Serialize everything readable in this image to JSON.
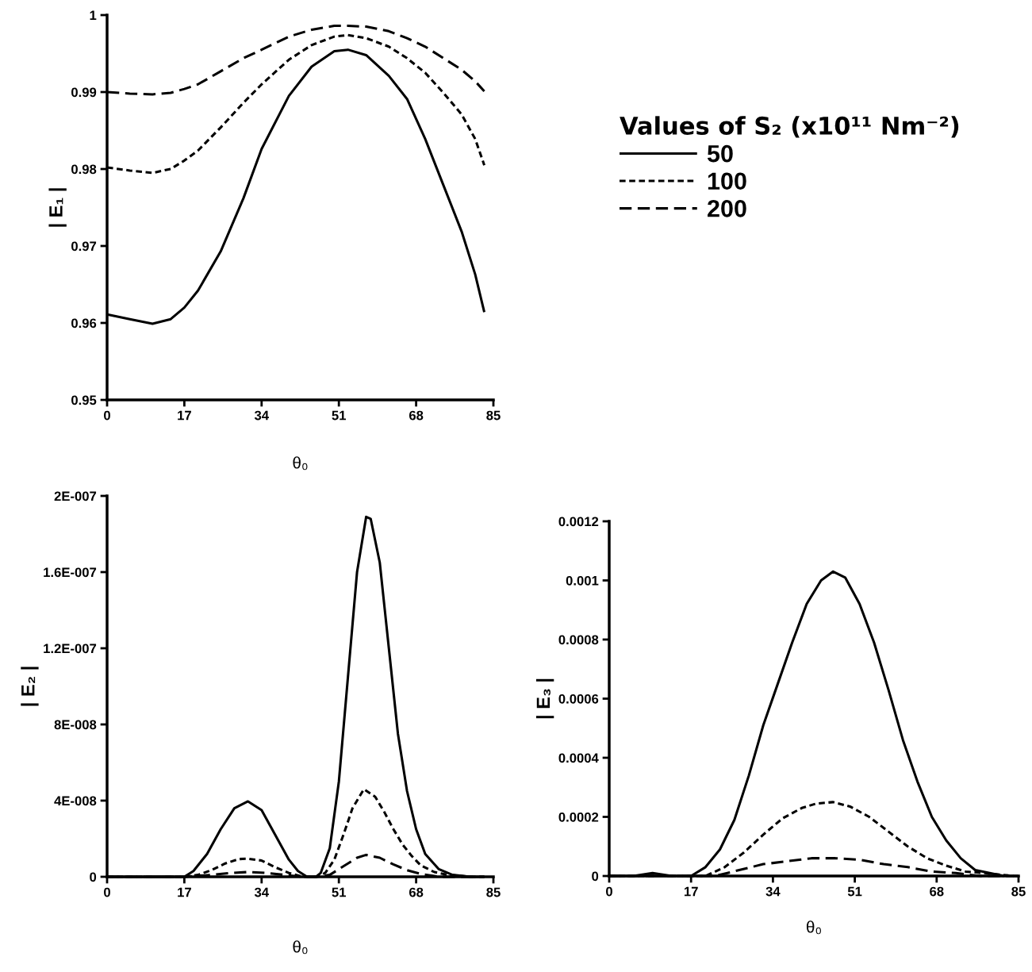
{
  "chart_data": [
    {
      "type": "line",
      "ylabel": "| E₁ |",
      "xlabel": "θ₀",
      "legend_title": "Values of S₂ (x10¹¹ Nm⁻²)",
      "legend": "right",
      "x": [
        0,
        5,
        10,
        14,
        17,
        20,
        25,
        30,
        34,
        40,
        45,
        50,
        53,
        57,
        62,
        66,
        70,
        74,
        78,
        81,
        83
      ],
      "xlim": [
        0,
        85
      ],
      "xticks": [
        0,
        17,
        34,
        51,
        68,
        85
      ],
      "ylim": [
        0.95,
        1
      ],
      "yticks": [
        0.95,
        0.96,
        0.97,
        0.98,
        0.99,
        1
      ],
      "grid": false,
      "marker": "none",
      "series": [
        {
          "name": "50",
          "color": "#000000",
          "line_style": "solid",
          "values": [
            0.9611,
            0.9605,
            0.9599,
            0.9605,
            0.962,
            0.9642,
            0.9693,
            0.9762,
            0.9826,
            0.9895,
            0.9933,
            0.9953,
            0.9955,
            0.9948,
            0.9921,
            0.9891,
            0.9839,
            0.9779,
            0.9719,
            0.9663,
            0.9614
          ]
        },
        {
          "name": "100",
          "color": "#000000",
          "line_style": "dotted",
          "values": [
            0.9802,
            0.9798,
            0.9795,
            0.98,
            0.9811,
            0.9824,
            0.9854,
            0.9886,
            0.991,
            0.9942,
            0.9961,
            0.9972,
            0.9974,
            0.997,
            0.9959,
            0.9944,
            0.9925,
            0.9899,
            0.9871,
            0.9839,
            0.9805
          ]
        },
        {
          "name": "200",
          "color": "#000000",
          "line_style": "dashed",
          "values": [
            0.99,
            0.9898,
            0.9897,
            0.9899,
            0.9904,
            0.991,
            0.9927,
            0.9944,
            0.9955,
            0.9972,
            0.9981,
            0.9986,
            0.9986,
            0.9985,
            0.9979,
            0.997,
            0.9959,
            0.9944,
            0.9929,
            0.9914,
            0.9901
          ]
        }
      ]
    },
    {
      "type": "line",
      "ylabel": "| E₂ |",
      "xlabel": "θ₀",
      "xlim": [
        0,
        85
      ],
      "xticks": [
        0,
        17,
        34,
        51,
        68,
        85
      ],
      "ylim": [
        0,
        2e-07
      ],
      "yticks": [
        {
          "value": 0,
          "label": "0"
        },
        {
          "value": 4e-08,
          "label": "4E-008"
        },
        {
          "value": 8e-08,
          "label": "8E-008"
        },
        {
          "value": 1.2e-07,
          "label": "1.2E-007"
        },
        {
          "value": 1.6e-07,
          "label": "1.6E-007"
        },
        {
          "value": 2e-07,
          "label": "2E-007"
        }
      ],
      "grid": false,
      "marker": "none",
      "series": [
        {
          "color": "#000000",
          "line_style": "solid",
          "x": [
            0,
            10,
            17,
            19,
            22,
            25,
            28,
            31,
            34,
            37,
            40,
            42,
            44,
            46,
            47,
            49,
            51,
            53,
            55,
            57,
            58,
            60,
            62,
            64,
            66,
            68,
            70,
            73,
            76,
            80,
            83
          ],
          "values": [
            0,
            0,
            0,
            3e-09,
            1.2e-08,
            2.5e-08,
            3.6e-08,
            3.96e-08,
            3.5e-08,
            2.2e-08,
            9e-09,
            3e-09,
            0,
            0,
            2e-09,
            1.5e-08,
            5e-08,
            1.05e-07,
            1.6e-07,
            1.89e-07,
            1.88e-07,
            1.65e-07,
            1.2e-07,
            7.5e-08,
            4.5e-08,
            2.5e-08,
            1.2e-08,
            4e-09,
            1e-09,
            0,
            0
          ]
        },
        {
          "color": "#000000",
          "line_style": "dotted",
          "x": [
            0,
            17,
            20,
            23,
            26,
            29,
            31,
            34,
            37,
            40,
            43,
            46,
            48,
            50,
            52,
            54,
            56.5,
            59,
            61,
            63,
            65,
            67,
            69,
            72,
            75,
            80,
            83
          ],
          "values": [
            0,
            0,
            1e-09,
            3.5e-09,
            7e-09,
            9.3e-09,
            9.5e-09,
            8.5e-09,
            5e-09,
            2e-09,
            0,
            0,
            2e-09,
            9e-09,
            2.2e-08,
            3.6e-08,
            4.6e-08,
            4.2e-08,
            3.4e-08,
            2.5e-08,
            1.7e-08,
            1.1e-08,
            6e-09,
            2.5e-09,
            1e-09,
            0,
            0
          ]
        },
        {
          "color": "#000000",
          "line_style": "dashed",
          "x": [
            0,
            17,
            23,
            27,
            31,
            35,
            39,
            43,
            46,
            49,
            52,
            55,
            57,
            60,
            63,
            66,
            69,
            73,
            78,
            83
          ],
          "values": [
            0,
            0,
            1e-09,
            2e-09,
            2.5e-09,
            2e-09,
            1e-09,
            0,
            0,
            1e-09,
            5.5e-09,
            1e-08,
            1.15e-08,
            1e-08,
            6.5e-09,
            3.5e-09,
            1.5e-09,
            0,
            0,
            0
          ]
        }
      ]
    },
    {
      "type": "line",
      "ylabel": "| E₃ |",
      "xlabel": "θ₀",
      "xlim": [
        0,
        85
      ],
      "xticks": [
        0,
        17,
        34,
        51,
        68,
        85
      ],
      "ylim": [
        0,
        0.0012
      ],
      "yticks": [
        0,
        0.0002,
        0.0004,
        0.0006,
        0.0008,
        0.001,
        0.0012
      ],
      "grid": false,
      "marker": "none",
      "series": [
        {
          "color": "#000000",
          "line_style": "solid",
          "x": [
            0,
            5,
            9,
            13,
            17,
            20,
            23,
            26,
            29,
            32,
            35,
            38,
            41,
            44,
            46.5,
            49,
            52,
            55,
            58,
            61,
            64,
            67,
            70,
            73,
            76,
            79,
            82
          ],
          "values": [
            0,
            0,
            1e-05,
            0,
            0,
            3e-05,
            9e-05,
            0.00019,
            0.00034,
            0.00051,
            0.00065,
            0.00079,
            0.00092,
            0.001,
            0.00103,
            0.00101,
            0.00092,
            0.00079,
            0.00063,
            0.00046,
            0.00032,
            0.0002,
            0.00012,
            6e-05,
            2e-05,
            1e-05,
            0
          ]
        },
        {
          "color": "#000000",
          "line_style": "dotted",
          "x": [
            0,
            17,
            20,
            24,
            28,
            32,
            36,
            40,
            43,
            46.5,
            50,
            54,
            58,
            62,
            66,
            70,
            74,
            78,
            84
          ],
          "values": [
            0,
            0,
            0,
            3e-05,
            8e-05,
            0.00014,
            0.000195,
            0.00023,
            0.000245,
            0.00025,
            0.000235,
            0.0002,
            0.00015,
            0.0001,
            6e-05,
            3.5e-05,
            1.5e-05,
            1e-05,
            0
          ]
        },
        {
          "color": "#000000",
          "line_style": "dashed",
          "x": [
            0,
            17,
            22,
            27,
            32,
            37,
            42,
            47,
            52,
            57,
            62,
            67,
            72,
            77,
            85
          ],
          "values": [
            0,
            0,
            0,
            2e-05,
            4e-05,
            5e-05,
            6e-05,
            6e-05,
            5.5e-05,
            4e-05,
            3e-05,
            1.5e-05,
            1e-05,
            0,
            0
          ]
        }
      ]
    }
  ]
}
